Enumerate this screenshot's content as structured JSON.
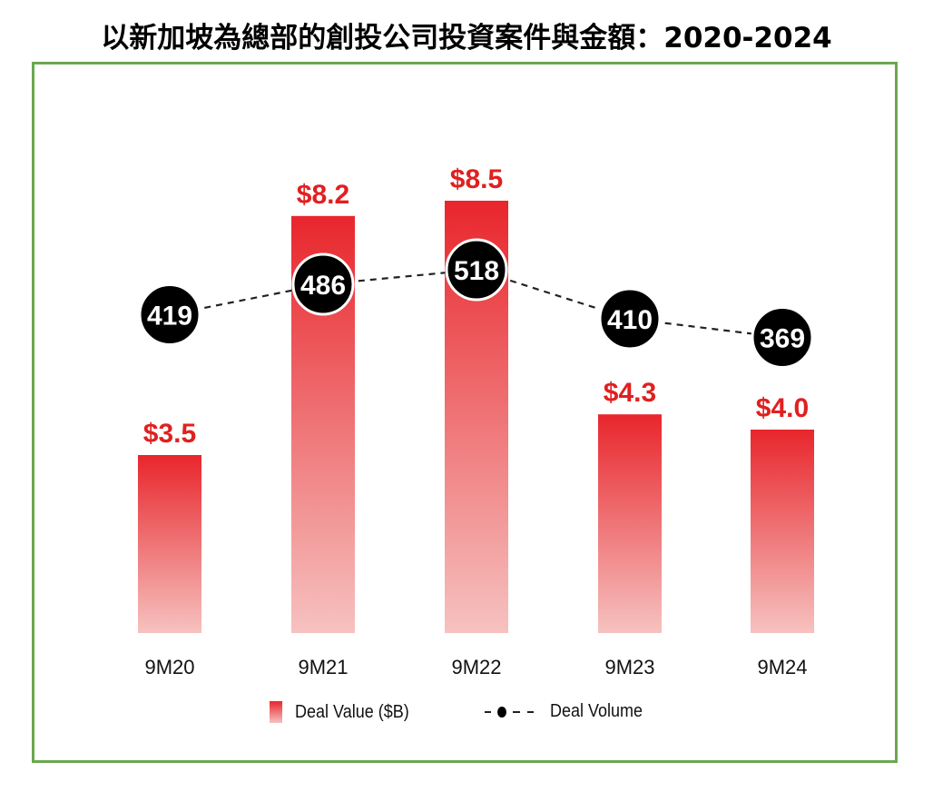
{
  "title": "以新加坡為總部的創投公司投資案件與金額：2020-2024",
  "chart_data": {
    "type": "bar",
    "categories": [
      "9M20",
      "9M21",
      "9M22",
      "9M23",
      "9M24"
    ],
    "series": [
      {
        "name": "Deal Value ($B)",
        "type": "bar",
        "values": [
          3.5,
          8.2,
          8.5,
          4.3,
          4.0
        ],
        "value_labels": [
          "$3.5",
          "$8.2",
          "$8.5",
          "$4.3",
          "$4.0"
        ],
        "color": "#e8262c"
      },
      {
        "name": "Deal Volume",
        "type": "line",
        "values": [
          419,
          486,
          518,
          410,
          369
        ],
        "value_labels": [
          "419",
          "486",
          "518",
          "410",
          "369"
        ],
        "color": "#000000"
      }
    ]
  },
  "legend": {
    "value_label": "Deal Value ($B)",
    "volume_label": "Deal Volume"
  },
  "colors": {
    "bar_top": "#e8262c",
    "bar_bottom": "#f6c2c0",
    "value_label": "#e02020",
    "frame": "#6aa84f",
    "volume_circle": "#000000"
  }
}
